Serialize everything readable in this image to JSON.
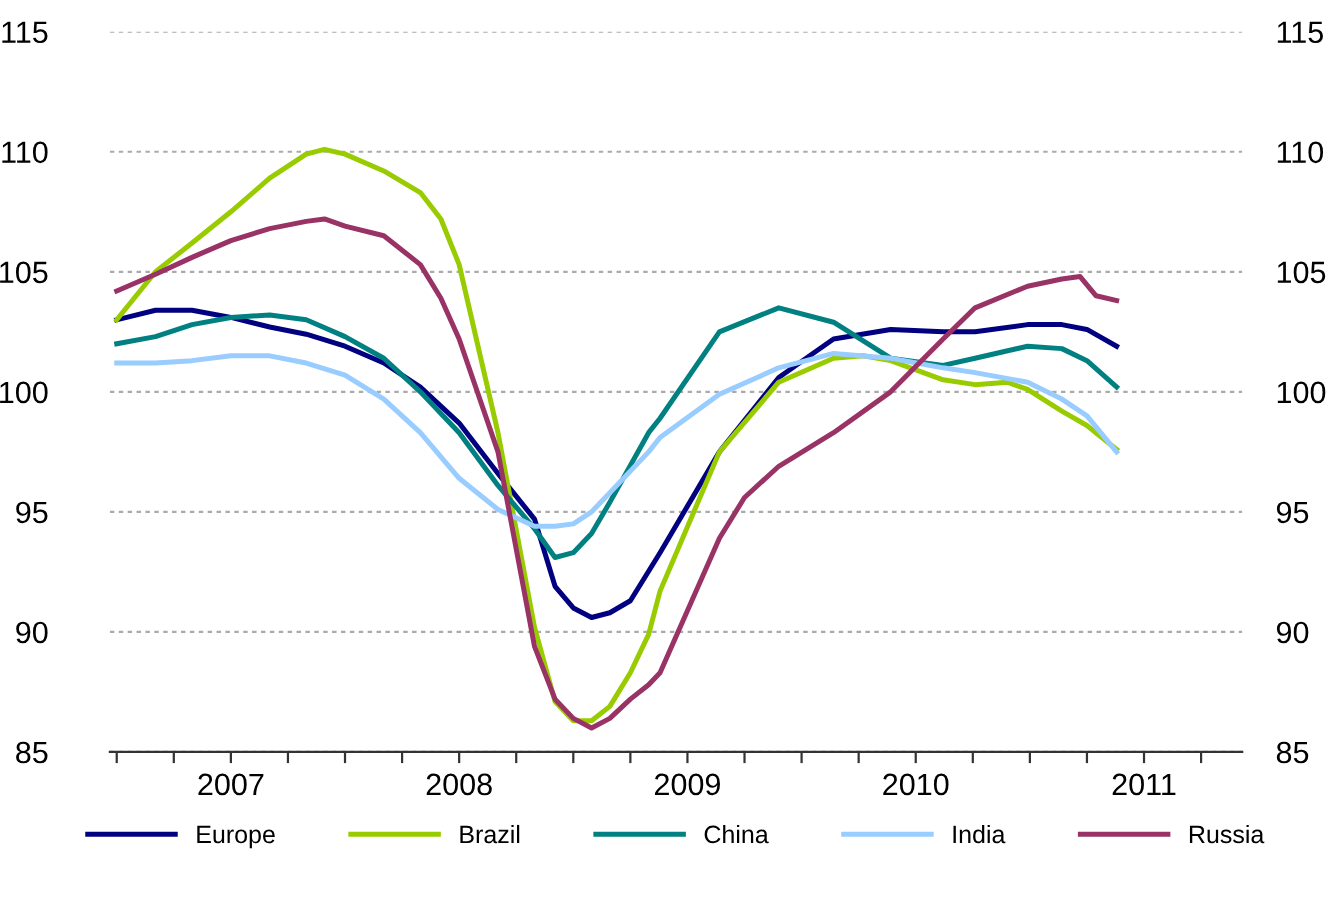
{
  "chart_data": {
    "type": "line",
    "xlim": [
      2006.97,
      2011.93
    ],
    "xticks": [
      {
        "value": 2007,
        "label": null
      },
      {
        "value": 2007.25,
        "label": null
      },
      {
        "value": 2007.5,
        "label": "2007"
      },
      {
        "value": 2007.75,
        "label": null
      },
      {
        "value": 2008,
        "label": null
      },
      {
        "value": 2008.25,
        "label": null
      },
      {
        "value": 2008.5,
        "label": "2008"
      },
      {
        "value": 2008.75,
        "label": null
      },
      {
        "value": 2009,
        "label": null
      },
      {
        "value": 2009.25,
        "label": null
      },
      {
        "value": 2009.5,
        "label": "2009"
      },
      {
        "value": 2009.75,
        "label": null
      },
      {
        "value": 2010,
        "label": null
      },
      {
        "value": 2010.25,
        "label": null
      },
      {
        "value": 2010.5,
        "label": "2010"
      },
      {
        "value": 2010.75,
        "label": null
      },
      {
        "value": 2011,
        "label": null
      },
      {
        "value": 2011.25,
        "label": null
      },
      {
        "value": 2011.5,
        "label": "2011"
      },
      {
        "value": 2011.75,
        "label": null
      }
    ],
    "ylim": [
      85,
      115
    ],
    "yticks": [
      85,
      90,
      95,
      100,
      105,
      110,
      115
    ],
    "y2lim": [
      85,
      115
    ],
    "y2ticks": [
      85,
      90,
      95,
      100,
      105,
      110,
      115
    ],
    "grid": "y",
    "legend": "bottom",
    "marker": "none",
    "line_style": "solid",
    "series": [
      {
        "name": "Europe",
        "color": "#000080",
        "x": [
          2007.0,
          2007.17,
          2007.33,
          2007.5,
          2007.67,
          2007.83,
          2008.0,
          2008.17,
          2008.33,
          2008.5,
          2008.67,
          2008.83,
          2008.92,
          2009.0,
          2009.08,
          2009.16,
          2009.25,
          2009.38,
          2009.64,
          2009.9,
          2010.14,
          2010.39,
          2010.62,
          2010.76,
          2010.99,
          2011.14,
          2011.25,
          2011.38
        ],
        "values": [
          103.0,
          103.4,
          103.4,
          103.1,
          102.7,
          102.4,
          101.9,
          101.2,
          100.2,
          98.7,
          96.6,
          94.7,
          91.9,
          91.0,
          90.6,
          90.8,
          91.3,
          93.3,
          97.5,
          100.6,
          102.2,
          102.6,
          102.5,
          102.5,
          102.8,
          102.8,
          102.6,
          101.9
        ]
      },
      {
        "name": "Brazil",
        "color": "#99cc00",
        "x": [
          2007.0,
          2007.17,
          2007.33,
          2007.5,
          2007.67,
          2007.83,
          2007.91,
          2008.0,
          2008.17,
          2008.33,
          2008.42,
          2008.5,
          2008.67,
          2008.83,
          2008.92,
          2009.0,
          2009.08,
          2009.16,
          2009.25,
          2009.33,
          2009.38,
          2009.64,
          2009.9,
          2010.14,
          2010.27,
          2010.39,
          2010.62,
          2010.76,
          2010.9,
          2010.99,
          2011.14,
          2011.25,
          2011.38
        ],
        "values": [
          103.0,
          105.0,
          106.2,
          107.5,
          108.9,
          109.9,
          110.1,
          109.9,
          109.2,
          108.3,
          107.2,
          105.3,
          98.3,
          90.2,
          87.1,
          86.3,
          86.3,
          86.9,
          88.3,
          89.9,
          91.7,
          97.5,
          100.4,
          101.4,
          101.5,
          101.3,
          100.5,
          100.3,
          100.4,
          100.1,
          99.2,
          98.6,
          97.6
        ]
      },
      {
        "name": "China",
        "color": "#008080",
        "x": [
          2007.0,
          2007.17,
          2007.33,
          2007.5,
          2007.67,
          2007.83,
          2008.0,
          2008.17,
          2008.33,
          2008.5,
          2008.67,
          2008.83,
          2008.92,
          2009.0,
          2009.08,
          2009.16,
          2009.33,
          2009.38,
          2009.64,
          2009.9,
          2010.14,
          2010.39,
          2010.62,
          2010.76,
          2010.99,
          2011.14,
          2011.25,
          2011.38
        ],
        "values": [
          102.0,
          102.3,
          102.8,
          103.1,
          103.2,
          103.0,
          102.3,
          101.4,
          100.0,
          98.3,
          96.1,
          94.3,
          93.1,
          93.3,
          94.1,
          95.4,
          98.3,
          98.9,
          102.5,
          103.5,
          102.9,
          101.4,
          101.1,
          101.4,
          101.9,
          101.8,
          101.3,
          100.2
        ]
      },
      {
        "name": "India",
        "color": "#99ccff",
        "x": [
          2007.0,
          2007.17,
          2007.33,
          2007.5,
          2007.67,
          2007.83,
          2008.0,
          2008.17,
          2008.33,
          2008.5,
          2008.67,
          2008.83,
          2008.92,
          2009.0,
          2009.08,
          2009.16,
          2009.33,
          2009.38,
          2009.64,
          2009.9,
          2010.14,
          2010.39,
          2010.62,
          2010.76,
          2010.99,
          2011.14,
          2011.25,
          2011.38
        ],
        "values": [
          101.2,
          101.2,
          101.3,
          101.5,
          101.5,
          101.2,
          100.7,
          99.7,
          98.3,
          96.4,
          95.1,
          94.4,
          94.4,
          94.5,
          95.0,
          95.8,
          97.5,
          98.1,
          99.9,
          101.0,
          101.6,
          101.4,
          101.0,
          100.8,
          100.4,
          99.7,
          99.0,
          97.5
        ]
      },
      {
        "name": "Russia",
        "color": "#993366",
        "x": [
          2007.0,
          2007.17,
          2007.33,
          2007.5,
          2007.67,
          2007.83,
          2007.91,
          2008.0,
          2008.17,
          2008.33,
          2008.42,
          2008.5,
          2008.67,
          2008.83,
          2008.92,
          2009.0,
          2009.08,
          2009.16,
          2009.25,
          2009.33,
          2009.38,
          2009.64,
          2009.75,
          2009.9,
          2010.14,
          2010.39,
          2010.62,
          2010.76,
          2010.99,
          2011.14,
          2011.22,
          2011.29,
          2011.38
        ],
        "values": [
          104.2,
          104.9,
          105.6,
          106.3,
          106.8,
          107.1,
          107.2,
          106.9,
          106.5,
          105.3,
          103.9,
          102.2,
          97.5,
          89.4,
          87.2,
          86.4,
          86.0,
          86.4,
          87.2,
          87.8,
          88.3,
          93.9,
          95.6,
          96.9,
          98.3,
          100.0,
          102.2,
          103.5,
          104.4,
          104.7,
          104.8,
          104.0,
          103.8
        ]
      }
    ]
  }
}
